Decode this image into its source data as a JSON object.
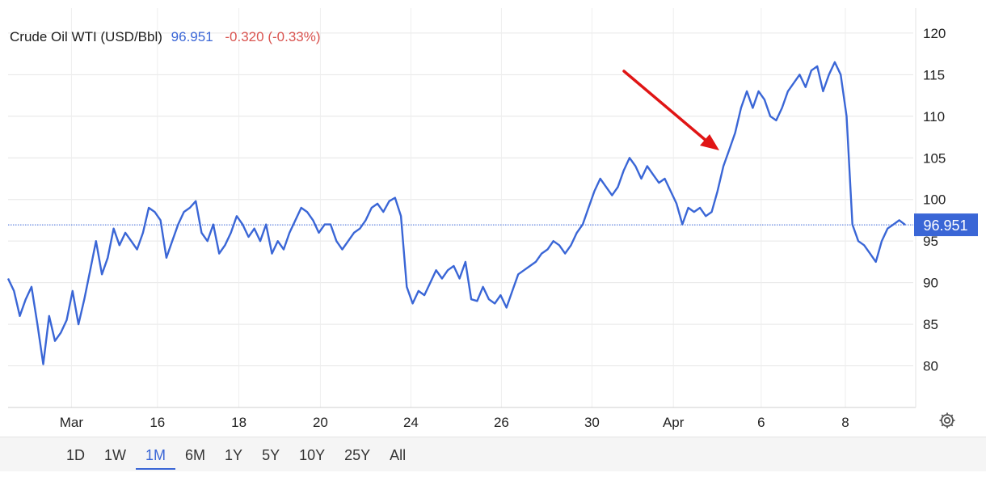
{
  "legend": {
    "instrument": "Crude Oil WTI (USD/Bbl)",
    "price": "96.951",
    "change": "-0.320 (-0.33%)"
  },
  "ranges": [
    "1D",
    "1W",
    "1M",
    "6M",
    "1Y",
    "5Y",
    "10Y",
    "25Y",
    "All"
  ],
  "active_range": "1M",
  "colors": {
    "line": "#3a66d6",
    "change_down": "#d9534f",
    "arrow": "#e01515"
  },
  "icons": {
    "settings": "gear-icon",
    "annotation": "red-arrow"
  },
  "chart_data": {
    "type": "line",
    "title": "",
    "xlabel": "",
    "ylabel": "",
    "ylim": [
      75,
      123
    ],
    "grid": true,
    "x_ticks": [
      "Mar",
      "16",
      "18",
      "20",
      "24",
      "26",
      "30",
      "Apr",
      "6",
      "8"
    ],
    "y_ticks": [
      80,
      85,
      90,
      95,
      100,
      105,
      110,
      115,
      120
    ],
    "last_value": 96.951,
    "last_value_label": "96.951",
    "series": [
      {
        "values": [
          90.5,
          89,
          86,
          88,
          89.5,
          85,
          80.2,
          86,
          83,
          84,
          85.5,
          89,
          85,
          88,
          91.5,
          95,
          91,
          93,
          96.5,
          94.5,
          96,
          95,
          94,
          96,
          99,
          98.5,
          97.5,
          93,
          95,
          97,
          98.5,
          99,
          99.8,
          96,
          95,
          97,
          93.5,
          94.5,
          96,
          98,
          97,
          95.5,
          96.5,
          95,
          97,
          93.5,
          95,
          94,
          96,
          97.5,
          99,
          98.5,
          97.5,
          96,
          97,
          97,
          95,
          94,
          95,
          96,
          96.5,
          97.5,
          99,
          99.5,
          98.5,
          99.8,
          100.2,
          98,
          89.5,
          87.5,
          89,
          88.5,
          90,
          91.5,
          90.5,
          91.5,
          92,
          90.5,
          92.5,
          88,
          87.8,
          89.5,
          88,
          87.5,
          88.5,
          87,
          89,
          91,
          91.5,
          92,
          92.5,
          93.5,
          94,
          95,
          94.5,
          93.5,
          94.5,
          96,
          97,
          99,
          101,
          102.5,
          101.5,
          100.5,
          101.5,
          103.5,
          105,
          104,
          102.5,
          104,
          103,
          102,
          102.5,
          101,
          99.5,
          97,
          99,
          98.5,
          99,
          98,
          98.5,
          101,
          104,
          106,
          108,
          111,
          113,
          111,
          113,
          112,
          110,
          109.5,
          111,
          113,
          114,
          115,
          113.5,
          115.5,
          116,
          113,
          115,
          116.5,
          115,
          110,
          97,
          95,
          94.5,
          93.5,
          92.5,
          95,
          96.5,
          97,
          97.5,
          96.951
        ]
      }
    ]
  }
}
